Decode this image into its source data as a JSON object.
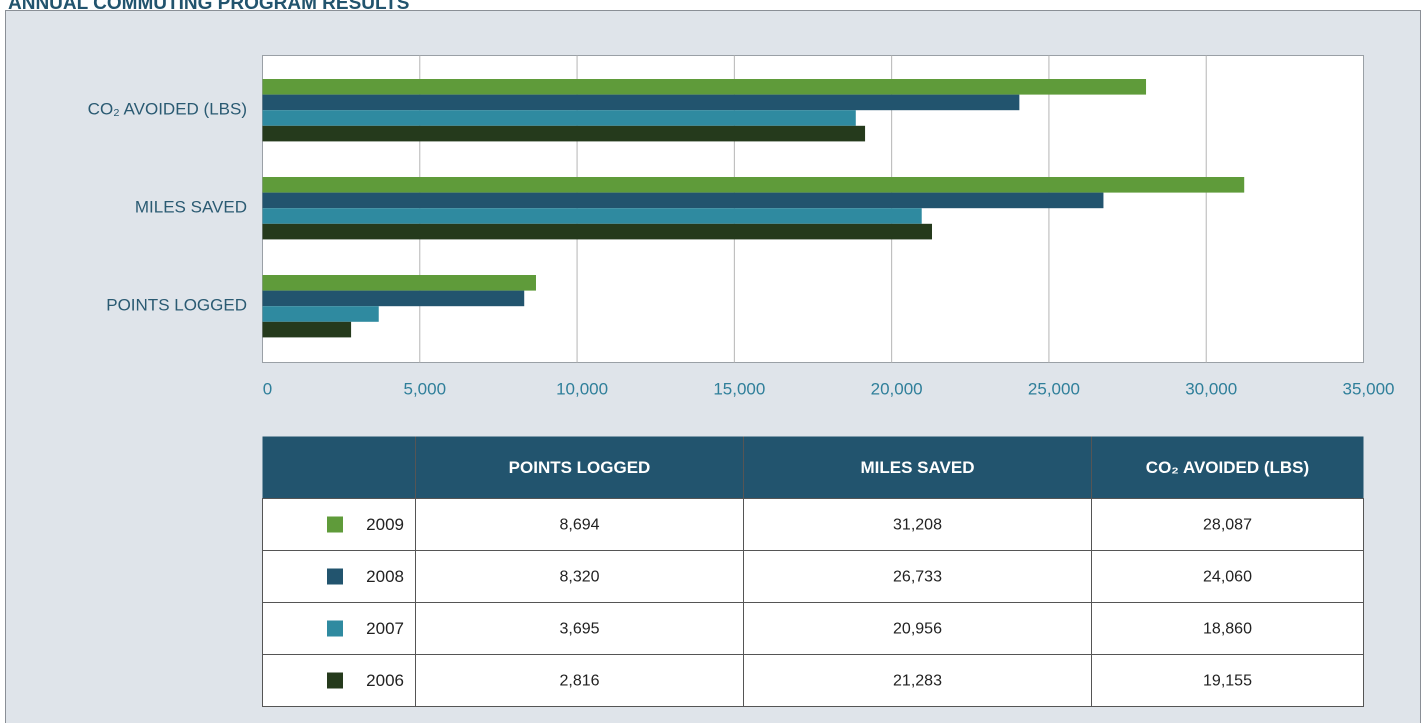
{
  "chart_data": {
    "type": "bar",
    "orientation": "horizontal",
    "title": "ANNUAL COMMUTING PROGRAM RESULTS",
    "categories": [
      "POINTS LOGGED",
      "MILES SAVED",
      "CO₂ AVOIDED (LBS)"
    ],
    "series": [
      {
        "name": "2009",
        "color": "#5f9b3a",
        "values": [
          8694,
          31208,
          28087
        ],
        "value_labels": [
          "8,694",
          "31,208",
          "28,087"
        ]
      },
      {
        "name": "2008",
        "color": "#22546e",
        "values": [
          8320,
          26733,
          24060
        ],
        "value_labels": [
          "8,320",
          "26,733",
          "24,060"
        ]
      },
      {
        "name": "2007",
        "color": "#2f8aa0",
        "values": [
          3695,
          20956,
          18860
        ],
        "value_labels": [
          "3,695",
          "20,956",
          "18,860"
        ]
      },
      {
        "name": "2006",
        "color": "#253a1c",
        "values": [
          2816,
          21283,
          19155
        ],
        "value_labels": [
          "2,816",
          "21,283",
          "19,155"
        ]
      }
    ],
    "xlim": [
      0,
      35000
    ],
    "xticks": [
      0,
      {
        "value": 5000,
        "label": "5,000"
      },
      {
        "value": 10000,
        "label": "10,000"
      },
      {
        "value": 15000,
        "label": "15,000"
      },
      {
        "value": 20000,
        "label": "20,000"
      },
      {
        "value": 25000,
        "label": "25,000"
      },
      {
        "value": 30000,
        "label": "30,000"
      },
      {
        "value": 35000,
        "label": "35,000"
      }
    ],
    "grid": true
  }
}
